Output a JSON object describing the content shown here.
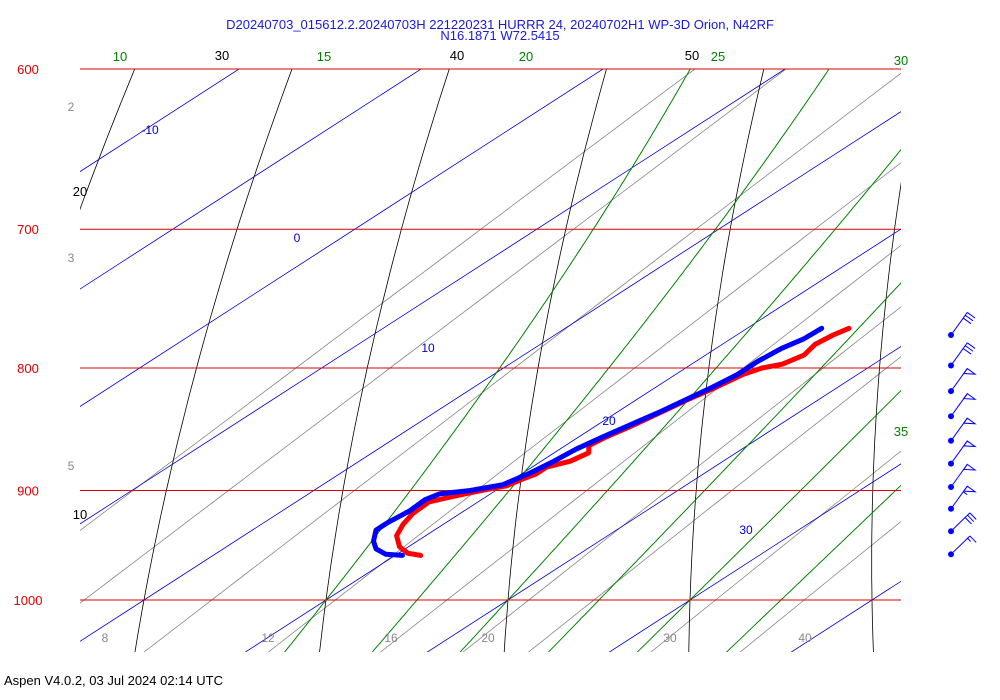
{
  "title_line1": "D20240703_015612.2.20240703H 221220231 HURRR 24, 20240702H1 WP-3D Orion, N42RF",
  "title_line2": "N16.1871 W72.5415",
  "footer": "Aspen V4.0.2, 03 Jul 2024  02:14 UTC",
  "colors": {
    "isobar": "#dd0000",
    "dry_adiabat": "#000000",
    "isotherm": "#0000cc",
    "moist_adiabat": "#008000",
    "mixing_ratio": "#888888",
    "temperature": "#ff0000",
    "dewpoint": "#0000ff",
    "wind": "#0000ff"
  },
  "chart_data": {
    "type": "skew-t log-p sounding",
    "pressure_axis": {
      "unit": "hPa",
      "ticks": [
        "600",
        "700",
        "800",
        "900",
        "1000"
      ],
      "range": [
        600,
        1000
      ],
      "scale": "log"
    },
    "isotherm_labels": [
      "-10",
      "0",
      "10",
      "20",
      "30"
    ],
    "dry_adiabat_labels": [
      "10",
      "20",
      "30",
      "40",
      "50"
    ],
    "moist_adiabat_labels": [
      "10",
      "15",
      "20",
      "25",
      "30",
      "35"
    ],
    "mixing_ratio_labels": [
      "2",
      "3",
      "5",
      "8",
      "12",
      "16",
      "20",
      "30",
      "40"
    ],
    "series": [
      {
        "name": "Temperature",
        "unit": "C",
        "points": [
          {
            "p": 770,
            "t": 15.6
          },
          {
            "p": 775,
            "t": 15.3
          },
          {
            "p": 782,
            "t": 15.1
          },
          {
            "p": 790,
            "t": 15.4
          },
          {
            "p": 797,
            "t": 15.0
          },
          {
            "p": 800,
            "t": 14.2
          },
          {
            "p": 805,
            "t": 13.7
          },
          {
            "p": 815,
            "t": 13.3
          },
          {
            "p": 825,
            "t": 12.8
          },
          {
            "p": 835,
            "t": 12.4
          },
          {
            "p": 845,
            "t": 12.0
          },
          {
            "p": 855,
            "t": 11.5
          },
          {
            "p": 862,
            "t": 11.3
          },
          {
            "p": 868,
            "t": 11.9
          },
          {
            "p": 875,
            "t": 11.6
          },
          {
            "p": 880,
            "t": 10.8
          },
          {
            "p": 886,
            "t": 10.8
          },
          {
            "p": 890,
            "t": 10.5
          },
          {
            "p": 896,
            "t": 10.2
          },
          {
            "p": 900,
            "t": 9.2
          },
          {
            "p": 905,
            "t": 8.2
          },
          {
            "p": 910,
            "t": 7.3
          },
          {
            "p": 920,
            "t": 7.4
          },
          {
            "p": 930,
            "t": 7.8
          },
          {
            "p": 940,
            "t": 8.4
          },
          {
            "p": 950,
            "t": 9.5
          },
          {
            "p": 956,
            "t": 10.5
          },
          {
            "p": 958,
            "t": 11.4
          }
        ]
      },
      {
        "name": "Dewpoint",
        "unit": "C",
        "points": [
          {
            "p": 770,
            "t": 14.1
          },
          {
            "p": 778,
            "t": 14.0
          },
          {
            "p": 785,
            "t": 13.6
          },
          {
            "p": 795,
            "t": 13.4
          },
          {
            "p": 805,
            "t": 13.4
          },
          {
            "p": 815,
            "t": 13.1
          },
          {
            "p": 825,
            "t": 12.7
          },
          {
            "p": 835,
            "t": 12.3
          },
          {
            "p": 845,
            "t": 11.8
          },
          {
            "p": 855,
            "t": 11.3
          },
          {
            "p": 865,
            "t": 10.9
          },
          {
            "p": 875,
            "t": 10.7
          },
          {
            "p": 885,
            "t": 10.4
          },
          {
            "p": 895,
            "t": 9.9
          },
          {
            "p": 900,
            "t": 8.6
          },
          {
            "p": 903,
            "t": 7.2
          },
          {
            "p": 908,
            "t": 6.9
          },
          {
            "p": 918,
            "t": 7.0
          },
          {
            "p": 928,
            "t": 6.8
          },
          {
            "p": 935,
            "t": 6.8
          },
          {
            "p": 945,
            "t": 7.6
          },
          {
            "p": 952,
            "t": 8.4
          },
          {
            "p": 957,
            "t": 9.4
          },
          {
            "p": 958,
            "t": 10.4
          }
        ]
      }
    ],
    "wind_barbs": [
      {
        "p": 775,
        "dir": 90,
        "spd": 30
      },
      {
        "p": 798,
        "dir": 90,
        "spd": 30
      },
      {
        "p": 818,
        "dir": 90,
        "spd": 50
      },
      {
        "p": 838,
        "dir": 90,
        "spd": 50
      },
      {
        "p": 858,
        "dir": 90,
        "spd": 50
      },
      {
        "p": 877,
        "dir": 90,
        "spd": 50
      },
      {
        "p": 897,
        "dir": 90,
        "spd": 50
      },
      {
        "p": 916,
        "dir": 90,
        "spd": 55
      },
      {
        "p": 936,
        "dir": 100,
        "spd": 30
      },
      {
        "p": 957,
        "dir": 100,
        "spd": 15
      }
    ]
  }
}
